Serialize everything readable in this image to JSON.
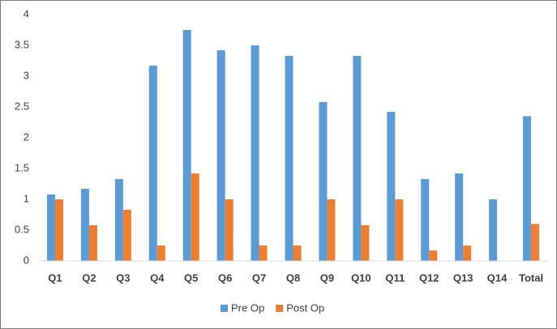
{
  "chart_data": {
    "type": "bar",
    "categories": [
      "Q1",
      "Q2",
      "Q3",
      "Q4",
      "Q5",
      "Q6",
      "Q7",
      "Q8",
      "Q9",
      "Q10",
      "Q11",
      "Q12",
      "Q13",
      "Q14",
      "Total"
    ],
    "series": [
      {
        "name": "Pre Op",
        "color": "#5b9bd5",
        "values": [
          1.08,
          1.17,
          1.33,
          3.17,
          3.75,
          3.42,
          3.5,
          3.33,
          2.58,
          3.33,
          2.42,
          1.33,
          1.42,
          1.0,
          2.35
        ]
      },
      {
        "name": "Post Op",
        "color": "#ed7d31",
        "values": [
          1.0,
          0.58,
          0.83,
          0.25,
          1.42,
          1.0,
          0.25,
          0.25,
          1.0,
          0.58,
          1.0,
          0.17,
          0.25,
          0,
          0.6
        ]
      }
    ],
    "ylim": [
      0,
      4
    ],
    "yticks": [
      0,
      0.5,
      1,
      1.5,
      2,
      2.5,
      3,
      3.5,
      4
    ],
    "grid": false,
    "legend": "bottom"
  }
}
